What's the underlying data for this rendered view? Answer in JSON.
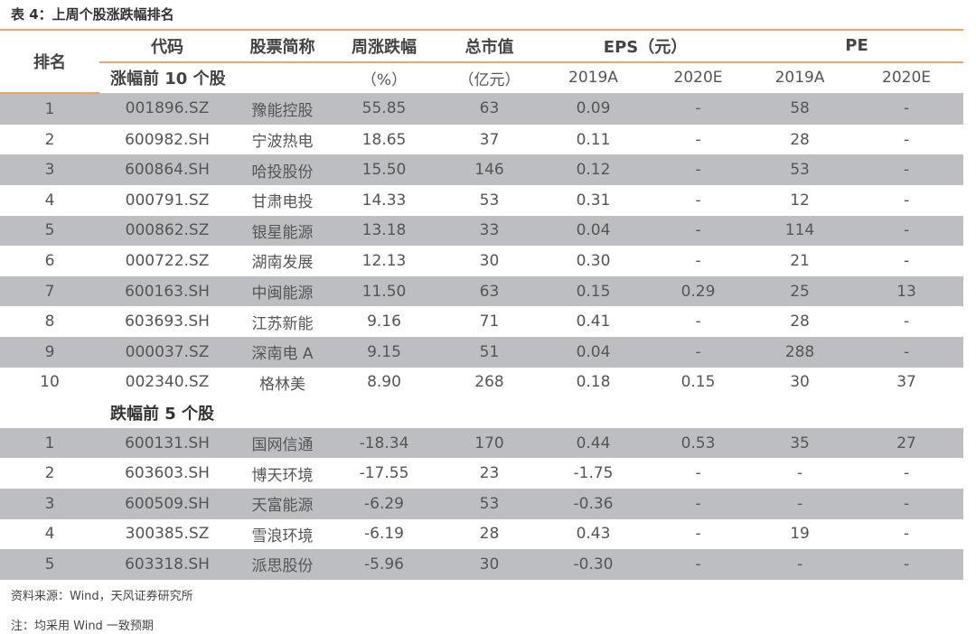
{
  "title": "表 4：上周个股涨跌幅排名",
  "headers": {
    "rank": "排名",
    "code": "代码",
    "name": "股票简称",
    "change": "周涨跌幅",
    "cap": "总市值",
    "eps": "EPS（元）",
    "pe": "PE",
    "change_unit": "（%）",
    "cap_unit": "（亿元）",
    "eps_2019": "2019A",
    "eps_2020": "2020E",
    "pe_2019": "2019A",
    "pe_2020": "2020E"
  },
  "sections": [
    {
      "label": "涨幅前 10 个股",
      "rows": [
        [
          "1",
          "001896.SZ",
          "豫能控股",
          "55.85",
          "63",
          "0.09",
          "-",
          "58",
          "-"
        ],
        [
          "2",
          "600982.SH",
          "宁波热电",
          "18.65",
          "37",
          "0.11",
          "-",
          "28",
          "-"
        ],
        [
          "3",
          "600864.SH",
          "哈投股份",
          "15.50",
          "146",
          "0.12",
          "-",
          "53",
          "-"
        ],
        [
          "4",
          "000791.SZ",
          "甘肃电投",
          "14.33",
          "53",
          "0.31",
          "-",
          "12",
          "-"
        ],
        [
          "5",
          "000862.SZ",
          "银星能源",
          "13.18",
          "33",
          "0.04",
          "-",
          "114",
          "-"
        ],
        [
          "6",
          "000722.SZ",
          "湖南发展",
          "12.13",
          "30",
          "0.30",
          "-",
          "21",
          "-"
        ],
        [
          "7",
          "600163.SH",
          "中闽能源",
          "11.50",
          "63",
          "0.15",
          "0.29",
          "25",
          "13"
        ],
        [
          "8",
          "603693.SH",
          "江苏新能",
          "9.16",
          "71",
          "0.41",
          "-",
          "28",
          "-"
        ],
        [
          "9",
          "000037.SZ",
          "深南电 A",
          "9.15",
          "51",
          "0.04",
          "-",
          "288",
          "-"
        ],
        [
          "10",
          "002340.SZ",
          "格林美",
          "8.90",
          "268",
          "0.18",
          "0.15",
          "30",
          "37"
        ]
      ]
    },
    {
      "label": "跌幅前 5 个股",
      "rows": [
        [
          "1",
          "600131.SH",
          "国网信通",
          "-18.34",
          "170",
          "0.44",
          "0.53",
          "35",
          "27"
        ],
        [
          "2",
          "603603.SH",
          "博天环境",
          "-17.55",
          "23",
          "-1.75",
          "-",
          "-",
          "-"
        ],
        [
          "3",
          "600509.SH",
          "天富能源",
          "-6.29",
          "53",
          "-0.36",
          "-",
          "-",
          "-"
        ],
        [
          "4",
          "300385.SZ",
          "雪浪环境",
          "-6.19",
          "28",
          "0.43",
          "-",
          "19",
          "-"
        ],
        [
          "5",
          "603318.SH",
          "派思股份",
          "-5.96",
          "30",
          "-0.30",
          "-",
          "-",
          "-"
        ]
      ]
    }
  ],
  "source": "资料来源：Wind，天风证券研究所",
  "footnote": "注：均采用 Wind 一致预期"
}
